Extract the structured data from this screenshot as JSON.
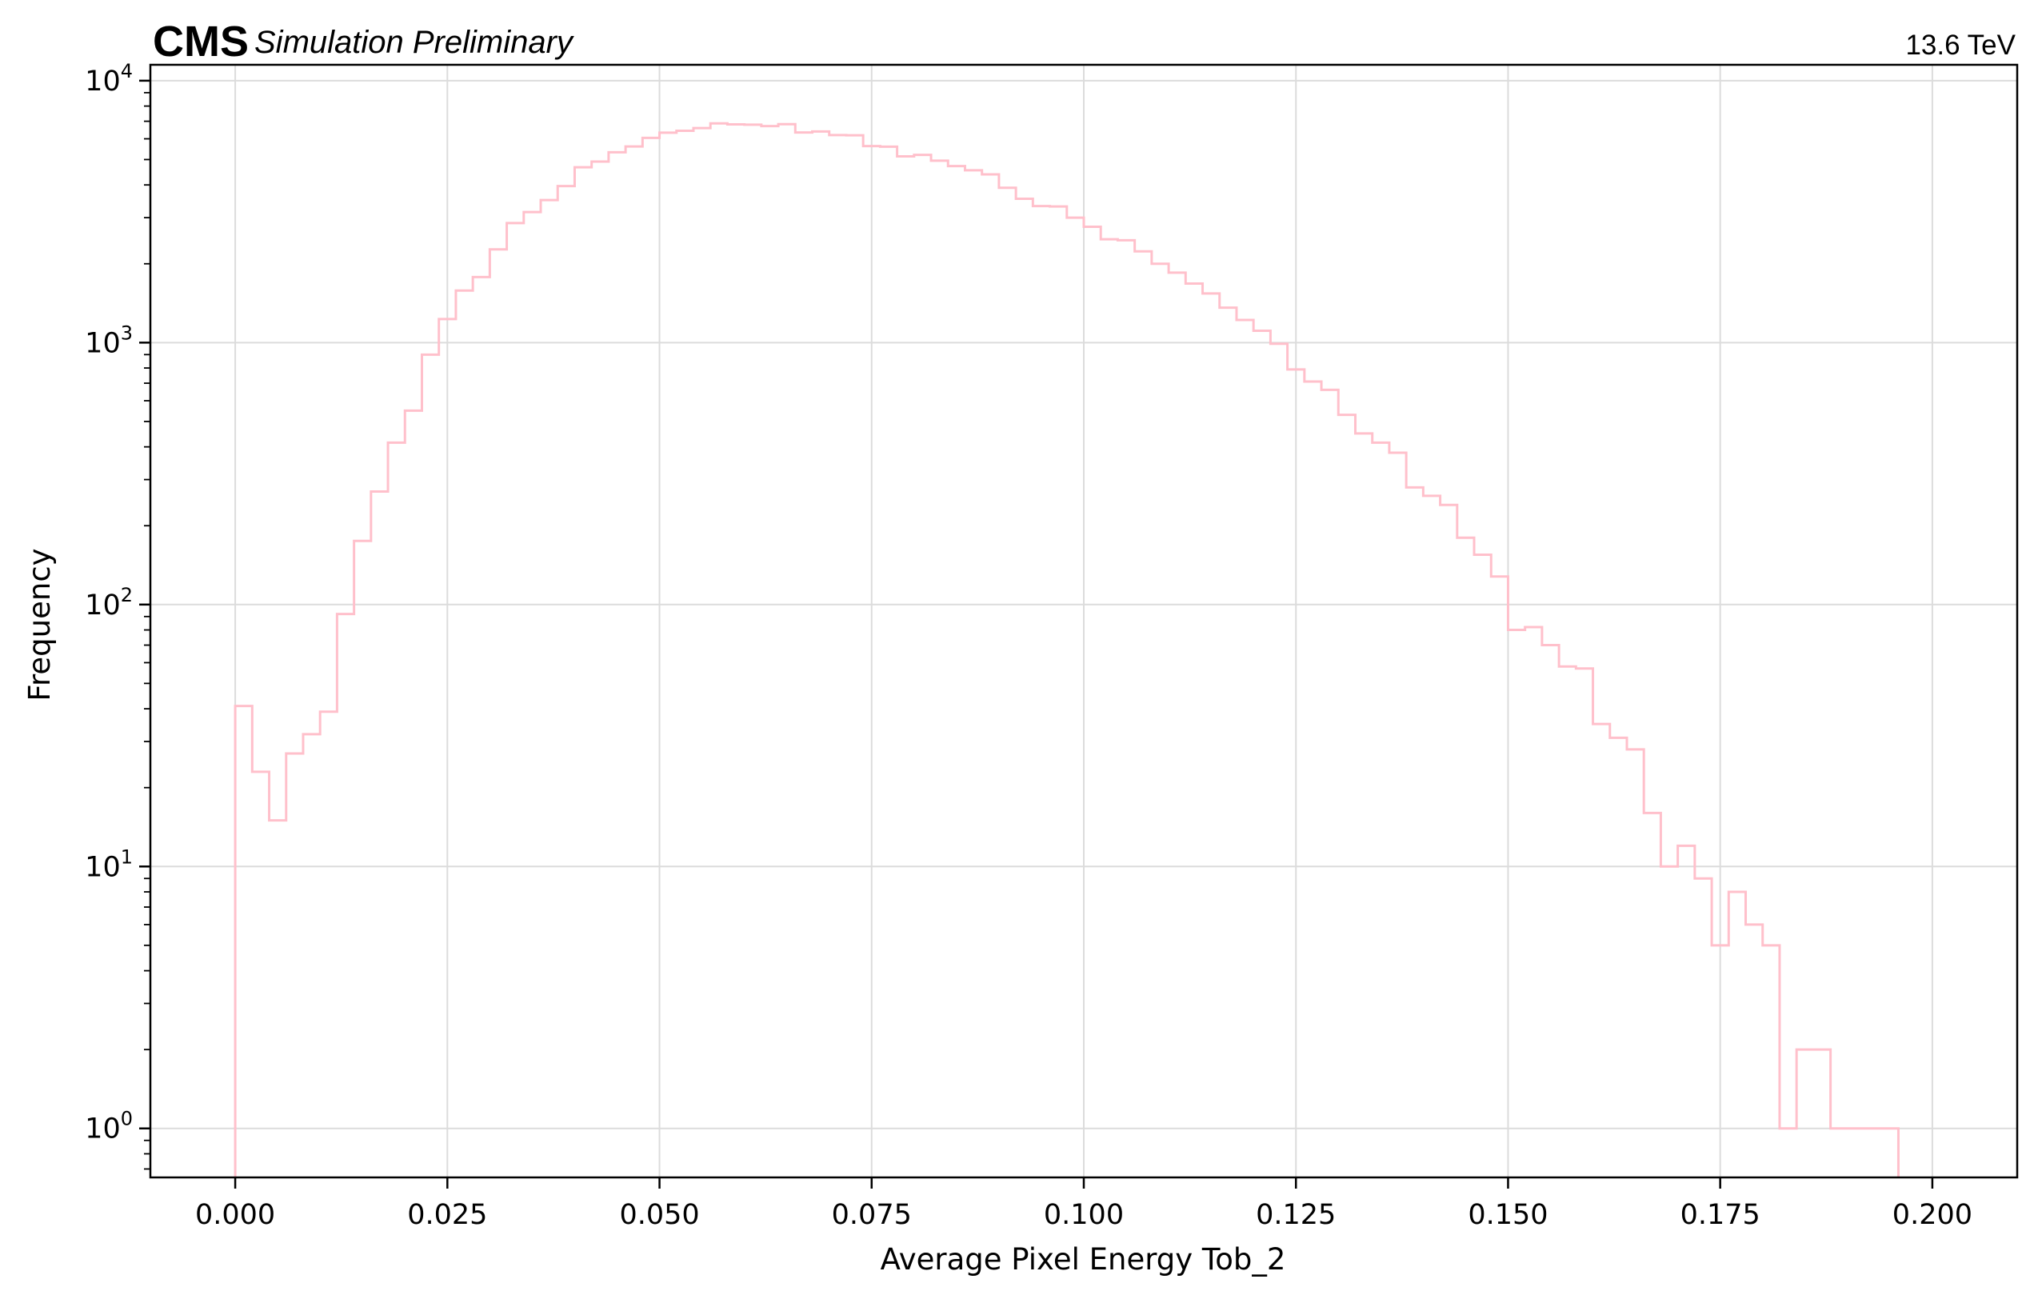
{
  "chart_data": {
    "type": "histogram",
    "experiment_label": "CMS",
    "status_label": "Simulation Preliminary",
    "energy_label": "13.6 TeV",
    "xlabel": "Average Pixel Energy Tob_2",
    "ylabel": "Frequency",
    "xlim": [
      -0.01,
      0.21
    ],
    "ylim": [
      0.65,
      11500
    ],
    "yscale": "log",
    "grid": true,
    "x_ticks": [
      {
        "value": 0.0,
        "label": "0.000"
      },
      {
        "value": 0.025,
        "label": "0.025"
      },
      {
        "value": 0.05,
        "label": "0.050"
      },
      {
        "value": 0.075,
        "label": "0.075"
      },
      {
        "value": 0.1,
        "label": "0.100"
      },
      {
        "value": 0.125,
        "label": "0.125"
      },
      {
        "value": 0.15,
        "label": "0.150"
      },
      {
        "value": 0.175,
        "label": "0.175"
      },
      {
        "value": 0.2,
        "label": "0.200"
      }
    ],
    "y_ticks": [
      {
        "value": 1,
        "base": "10",
        "exp": "0"
      },
      {
        "value": 10,
        "base": "10",
        "exp": "1"
      },
      {
        "value": 100,
        "base": "10",
        "exp": "2"
      },
      {
        "value": 1000,
        "base": "10",
        "exp": "3"
      },
      {
        "value": 10000,
        "base": "10",
        "exp": "4"
      }
    ],
    "series": [
      {
        "color": "#ffc0cb",
        "bin_start": 0.0,
        "bin_width": 0.002,
        "counts": [
          41,
          23,
          15,
          27,
          32,
          39,
          92,
          175,
          270,
          415,
          550,
          900,
          1230,
          1580,
          1780,
          2270,
          2860,
          3150,
          3500,
          3960,
          4670,
          4910,
          5330,
          5610,
          6050,
          6330,
          6440,
          6590,
          6870,
          6810,
          6790,
          6710,
          6820,
          6340,
          6400,
          6200,
          6190,
          5630,
          5600,
          5140,
          5210,
          4950,
          4720,
          4550,
          4390,
          3900,
          3540,
          3320,
          3310,
          3000,
          2770,
          2480,
          2460,
          2230,
          2000,
          1850,
          1680,
          1540,
          1360,
          1220,
          1110,
          990,
          790,
          710,
          660,
          530,
          450,
          415,
          380,
          280,
          260,
          240,
          180,
          155,
          128,
          80,
          82,
          70,
          58,
          57,
          35,
          31,
          28,
          16,
          10,
          12,
          9,
          5,
          8,
          6,
          5,
          1,
          2,
          2,
          1,
          1,
          1,
          1
        ]
      }
    ]
  }
}
